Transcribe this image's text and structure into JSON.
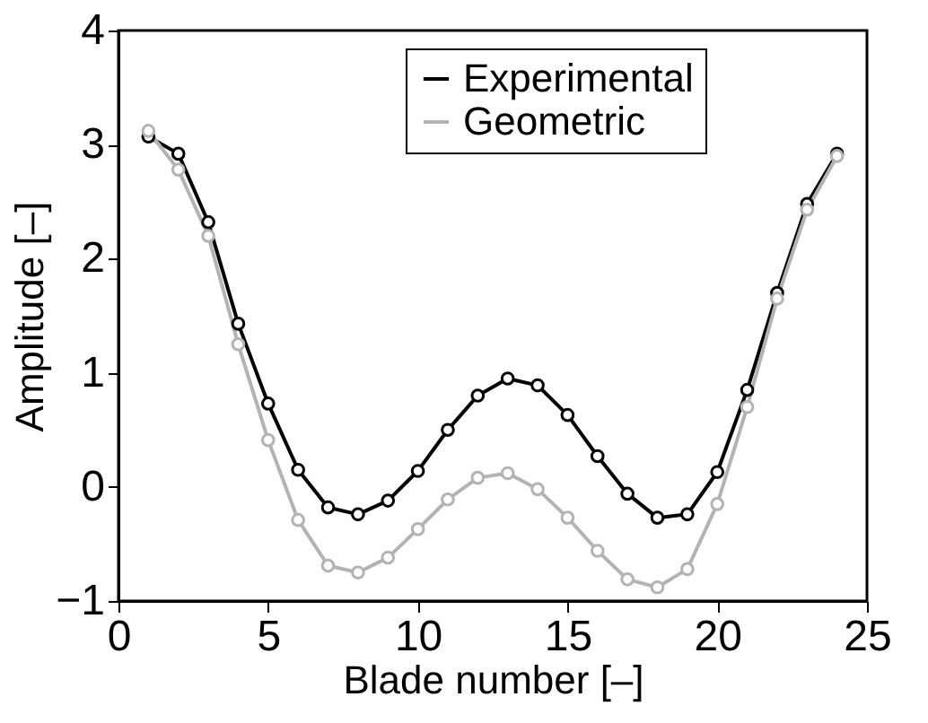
{
  "chart_data": {
    "type": "line",
    "xlabel": "Blade number [–]",
    "ylabel": "Amplitude [–]",
    "x": [
      1,
      2,
      3,
      4,
      5,
      6,
      7,
      8,
      9,
      10,
      11,
      12,
      13,
      14,
      15,
      16,
      17,
      18,
      19,
      20,
      21,
      22,
      23,
      24
    ],
    "series": [
      {
        "name": "Experimental",
        "color": "#000000",
        "values": [
          3.07,
          2.92,
          2.32,
          1.43,
          0.73,
          0.15,
          -0.18,
          -0.24,
          -0.12,
          0.14,
          0.5,
          0.8,
          0.95,
          0.89,
          0.63,
          0.27,
          -0.06,
          -0.27,
          -0.24,
          0.13,
          0.85,
          1.7,
          2.48,
          2.92
        ]
      },
      {
        "name": "Geometric",
        "color": "#b3b3b3",
        "values": [
          3.12,
          2.78,
          2.2,
          1.25,
          0.41,
          -0.29,
          -0.69,
          -0.75,
          -0.62,
          -0.37,
          -0.11,
          0.08,
          0.12,
          -0.02,
          -0.27,
          -0.56,
          -0.81,
          -0.88,
          -0.72,
          -0.15,
          0.7,
          1.65,
          2.43,
          2.9
        ]
      }
    ],
    "xlim": [
      0,
      25
    ],
    "xticks": [
      0,
      5,
      10,
      15,
      20,
      25
    ],
    "ylim": [
      -1,
      4
    ],
    "yticks": [
      -1,
      0,
      1,
      2,
      3,
      4
    ],
    "grid": false,
    "legend": "top right",
    "marker": "circle",
    "line_style": "solid"
  }
}
